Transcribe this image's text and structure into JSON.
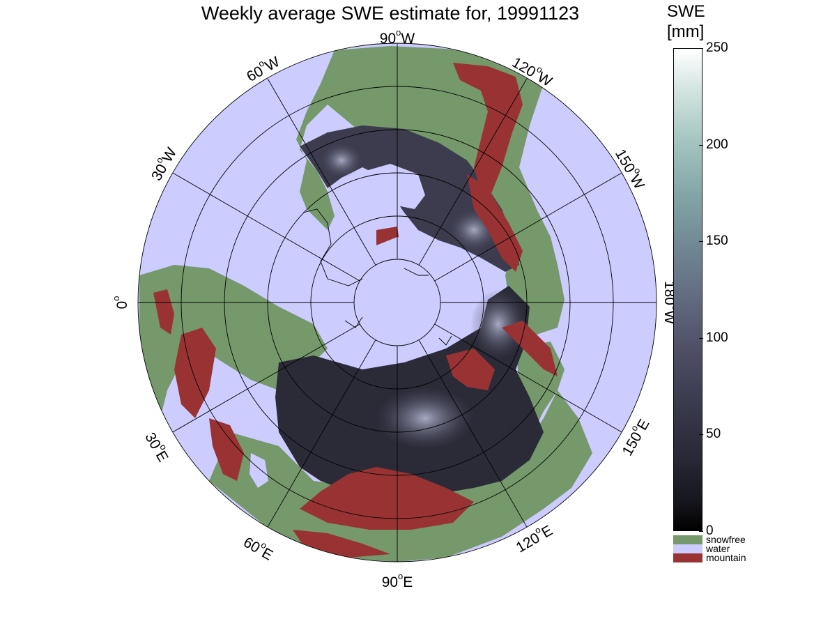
{
  "title": "Weekly average SWE estimate for, 19991123",
  "map": {
    "projection": "north polar stereographic",
    "center": "North Pole",
    "longitude_labels": [
      {
        "lon": "90",
        "hemi": "W"
      },
      {
        "lon": "120",
        "hemi": "W"
      },
      {
        "lon": "150",
        "hemi": "W"
      },
      {
        "lon": "180",
        "hemi": "W"
      },
      {
        "lon": "150",
        "hemi": "E"
      },
      {
        "lon": "120",
        "hemi": "E"
      },
      {
        "lon": "90",
        "hemi": "E"
      },
      {
        "lon": "60",
        "hemi": "E"
      },
      {
        "lon": "30",
        "hemi": "E"
      },
      {
        "lon": "0",
        "hemi": ""
      },
      {
        "lon": "30",
        "hemi": "W"
      },
      {
        "lon": "60",
        "hemi": "W"
      }
    ],
    "colors": {
      "water": "#ccccff",
      "snowfree": "#75996b",
      "mountain": "#993333",
      "swe_low": "#1a1a22",
      "swe_mid": "#4a4a60",
      "swe_high": "#9aa0b8"
    }
  },
  "colorbar": {
    "title_line1": "SWE",
    "title_line2": "[mm]",
    "ticks": [
      "0",
      "50",
      "100",
      "150",
      "200",
      "250"
    ],
    "range": [
      0,
      250
    ],
    "legend": [
      {
        "label": "snowfree",
        "color": "#75996b"
      },
      {
        "label": "water",
        "color": "#ccccff"
      },
      {
        "label": "mountain",
        "color": "#993333"
      }
    ]
  }
}
